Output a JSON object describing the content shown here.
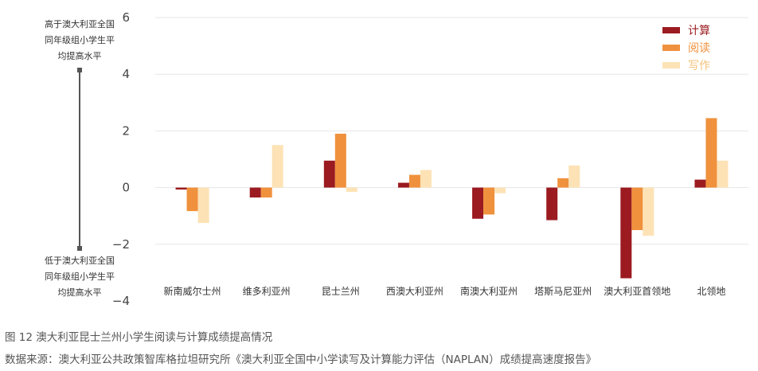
{
  "figure": {
    "caption": "图 12  澳大利亚昆士兰州小学生阅读与计算成绩提高情况",
    "source": "数据来源：澳大利亚公共政策智库格拉坦研究所《澳大利亚全国中小学读写及计算能力评估（NAPLAN）成绩提高速度报告》"
  },
  "annotations": {
    "above": [
      "高于澳大利亚全国",
      "同年级组小学生平",
      "均提高水平"
    ],
    "below": [
      "低于澳大利亚全国",
      "同年级组小学生平",
      "均提高水平"
    ]
  },
  "colors": {
    "series": [
      "#9b1b20",
      "#f0913d",
      "#fde2b5"
    ],
    "grid": "#e6e6e6",
    "arrow": "#555555",
    "legend_text": [
      "#9b1b20",
      "#f0913d",
      "#f5c27a"
    ]
  },
  "chart_data": {
    "type": "bar",
    "categories": [
      "新南威尔士州",
      "维多利亚州",
      "昆士兰州",
      "西澳大利亚州",
      "南澳大利亚州",
      "塔斯马尼亚州",
      "澳大利亚首领地",
      "北领地"
    ],
    "series": [
      {
        "name": "计算",
        "values": [
          -0.07,
          -0.35,
          0.95,
          0.17,
          -1.1,
          -1.15,
          -3.2,
          0.28
        ]
      },
      {
        "name": "阅读",
        "values": [
          -0.83,
          -0.35,
          1.9,
          0.45,
          -0.95,
          0.33,
          -1.5,
          2.45
        ]
      },
      {
        "name": "写作",
        "values": [
          -1.25,
          1.5,
          -0.15,
          0.62,
          -0.2,
          0.78,
          -1.7,
          0.95
        ]
      }
    ],
    "yticks": [
      "6",
      "4",
      "2",
      "0",
      "−2",
      "−4"
    ],
    "ytick_values": [
      6,
      4,
      2,
      0,
      -2,
      -4
    ],
    "ylim": [
      -4,
      6
    ],
    "grid": true,
    "legend": "top-right"
  }
}
